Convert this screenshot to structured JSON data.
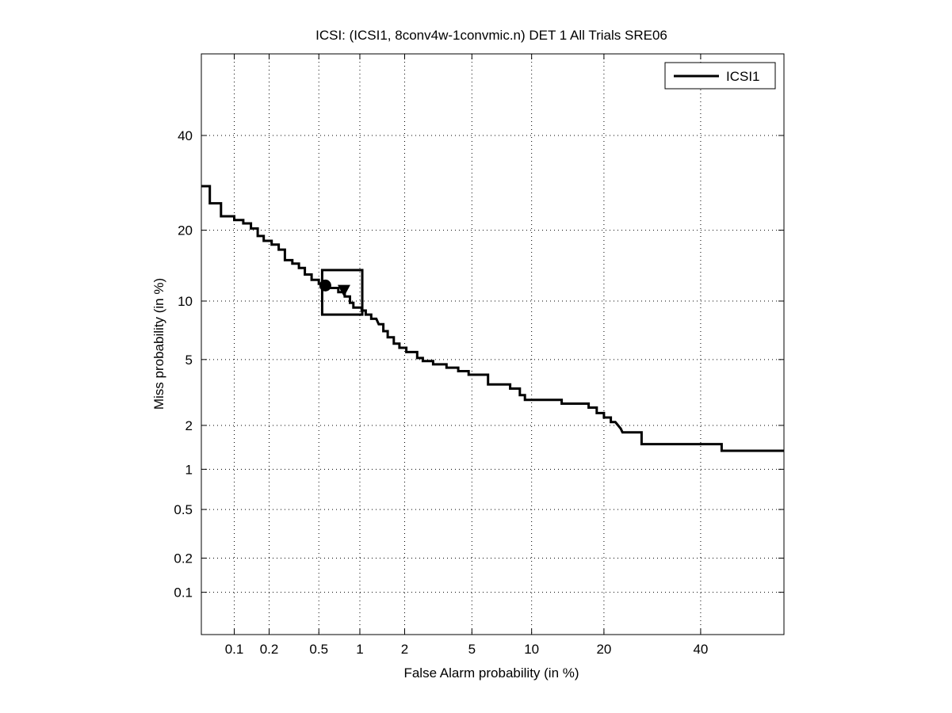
{
  "chart_data": {
    "type": "line",
    "title": "ICSI: (ICSI1, 8conv4w-1convmic.n) DET 1 All Trials SRE06",
    "xlabel": "False Alarm probability (in %)",
    "ylabel": "Miss probability (in %)",
    "scale": "normal-deviate (probit) on both axes",
    "xlim": [
      0.05,
      60
    ],
    "ylim": [
      0.04,
      60
    ],
    "x_ticks": [
      0.1,
      0.2,
      0.5,
      1,
      2,
      5,
      10,
      20,
      40
    ],
    "x_tick_labels": [
      "0.1",
      "0.2",
      "0.5",
      "1",
      "2",
      "5",
      "10",
      "20",
      "40"
    ],
    "y_ticks": [
      0.1,
      0.2,
      0.5,
      1,
      2,
      5,
      10,
      20,
      40
    ],
    "y_tick_labels": [
      "0.1",
      "0.2",
      "0.5",
      "1",
      "2",
      "5",
      "10",
      "20",
      "40"
    ],
    "grid": true,
    "legend_position": "top-right",
    "series": [
      {
        "name": "ICSI1",
        "color": "#000000",
        "points": [
          [
            0.05,
            28.5
          ],
          [
            0.06,
            28.5
          ],
          [
            0.06,
            25.0
          ],
          [
            0.076,
            25.0
          ],
          [
            0.076,
            22.5
          ],
          [
            0.1,
            22.5
          ],
          [
            0.1,
            21.8
          ],
          [
            0.12,
            21.8
          ],
          [
            0.12,
            21.2
          ],
          [
            0.14,
            21.2
          ],
          [
            0.14,
            20.3
          ],
          [
            0.16,
            20.3
          ],
          [
            0.16,
            19.0
          ],
          [
            0.18,
            19.0
          ],
          [
            0.18,
            18.2
          ],
          [
            0.21,
            18.2
          ],
          [
            0.21,
            17.6
          ],
          [
            0.24,
            17.6
          ],
          [
            0.24,
            16.8
          ],
          [
            0.27,
            16.8
          ],
          [
            0.27,
            15.2
          ],
          [
            0.31,
            15.2
          ],
          [
            0.31,
            14.7
          ],
          [
            0.35,
            14.7
          ],
          [
            0.35,
            14.1
          ],
          [
            0.39,
            14.1
          ],
          [
            0.39,
            13.2
          ],
          [
            0.44,
            13.2
          ],
          [
            0.44,
            12.5
          ],
          [
            0.5,
            12.5
          ],
          [
            0.5,
            12.0
          ],
          [
            0.55,
            12.0
          ],
          [
            0.55,
            11.5
          ],
          [
            0.62,
            11.5
          ],
          [
            0.7,
            11.5
          ],
          [
            0.7,
            11.0
          ],
          [
            0.78,
            11.0
          ],
          [
            0.78,
            10.5
          ],
          [
            0.85,
            10.5
          ],
          [
            0.85,
            9.8
          ],
          [
            0.9,
            9.8
          ],
          [
            0.9,
            9.3
          ],
          [
            0.98,
            9.3
          ],
          [
            1.03,
            9.3
          ],
          [
            1.03,
            9.0
          ],
          [
            1.1,
            9.0
          ],
          [
            1.1,
            8.6
          ],
          [
            1.2,
            8.6
          ],
          [
            1.2,
            8.2
          ],
          [
            1.3,
            8.2
          ],
          [
            1.35,
            7.7
          ],
          [
            1.45,
            7.7
          ],
          [
            1.45,
            7.1
          ],
          [
            1.55,
            7.1
          ],
          [
            1.55,
            6.6
          ],
          [
            1.7,
            6.6
          ],
          [
            1.7,
            6.1
          ],
          [
            1.85,
            6.1
          ],
          [
            1.85,
            5.8
          ],
          [
            2.05,
            5.8
          ],
          [
            2.05,
            5.5
          ],
          [
            2.4,
            5.5
          ],
          [
            2.4,
            5.1
          ],
          [
            2.6,
            5.1
          ],
          [
            2.6,
            4.9
          ],
          [
            3.0,
            4.9
          ],
          [
            3.0,
            4.7
          ],
          [
            3.6,
            4.7
          ],
          [
            3.6,
            4.5
          ],
          [
            4.2,
            4.5
          ],
          [
            4.2,
            4.3
          ],
          [
            4.8,
            4.3
          ],
          [
            4.8,
            4.1
          ],
          [
            6.1,
            4.1
          ],
          [
            6.1,
            3.6
          ],
          [
            7.9,
            3.6
          ],
          [
            7.9,
            3.4
          ],
          [
            8.8,
            3.4
          ],
          [
            8.8,
            3.1
          ],
          [
            9.3,
            3.1
          ],
          [
            9.3,
            2.9
          ],
          [
            13.6,
            2.9
          ],
          [
            13.6,
            2.75
          ],
          [
            17.5,
            2.75
          ],
          [
            17.5,
            2.6
          ],
          [
            18.8,
            2.6
          ],
          [
            18.8,
            2.4
          ],
          [
            20.0,
            2.4
          ],
          [
            20.0,
            2.25
          ],
          [
            21.2,
            2.25
          ],
          [
            21.2,
            2.1
          ],
          [
            22.0,
            2.1
          ],
          [
            22.5,
            2.0
          ],
          [
            23.0,
            1.9
          ],
          [
            23.3,
            1.8
          ],
          [
            27.0,
            1.8
          ],
          [
            27.0,
            1.5
          ],
          [
            45.0,
            1.5
          ],
          [
            45.0,
            1.35
          ],
          [
            60.0,
            1.35
          ]
        ]
      }
    ],
    "markers": [
      {
        "name": "circle-marker",
        "x": 0.56,
        "y": 11.8
      },
      {
        "name": "triangle-marker",
        "x": 0.77,
        "y": 11.3
      }
    ],
    "annotation_box": {
      "x_range": [
        0.53,
        1.04
      ],
      "y_range": [
        8.6,
        13.8
      ]
    }
  }
}
